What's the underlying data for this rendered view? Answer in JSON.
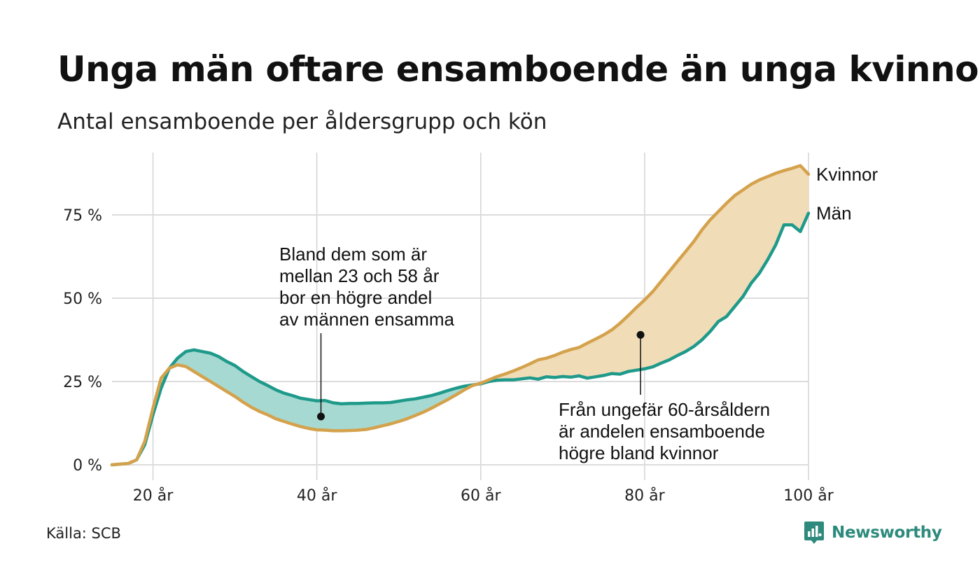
{
  "header": {
    "title": "Unga män oftare ensamboende än unga kvinnor",
    "subtitle": "Antal ensamboende per åldersgrupp och kön"
  },
  "footer": {
    "source": "Källa: SCB",
    "brand": "Newsworthy",
    "brand_color": "#2d8a7c"
  },
  "chart_data": {
    "type": "line",
    "x_unit_label": "år",
    "xlim": [
      15,
      100
    ],
    "ylim": [
      0,
      93
    ],
    "x_ticks": [
      20,
      40,
      60,
      80,
      100
    ],
    "x_tick_labels": [
      "20 år",
      "40 år",
      "60 år",
      "80 år",
      "100 år"
    ],
    "y_ticks": [
      0,
      25,
      50,
      75
    ],
    "y_tick_labels": [
      "0 %",
      "25 %",
      "50 %",
      "75 %"
    ],
    "grid": true,
    "colors": {
      "Kvinnor": "#d4a24c",
      "Män": "#1f9a8a",
      "fill_men_higher": "#a6d9d2",
      "fill_women_higher": "#f1dcb8"
    },
    "series": [
      {
        "name": "Kvinnor",
        "x": [
          15,
          16,
          17,
          18,
          19,
          20,
          21,
          22,
          23,
          24,
          25,
          26,
          27,
          28,
          29,
          30,
          31,
          32,
          33,
          34,
          35,
          36,
          37,
          38,
          39,
          40,
          41,
          42,
          43,
          44,
          45,
          46,
          47,
          48,
          49,
          50,
          51,
          52,
          53,
          54,
          55,
          56,
          57,
          58,
          59,
          60,
          61,
          62,
          63,
          64,
          65,
          66,
          67,
          68,
          69,
          70,
          71,
          72,
          73,
          74,
          75,
          76,
          77,
          78,
          79,
          80,
          81,
          82,
          83,
          84,
          85,
          86,
          87,
          88,
          89,
          90,
          91,
          92,
          93,
          94,
          95,
          96,
          97,
          98,
          99,
          100
        ],
        "values": [
          0,
          0.2,
          0.4,
          1.5,
          7,
          17,
          26,
          29,
          30,
          29.5,
          28,
          26.5,
          25,
          23.5,
          22,
          20.5,
          18.8,
          17.3,
          16,
          15,
          13.8,
          13,
          12.2,
          11.5,
          10.9,
          10.5,
          10.4,
          10.2,
          10.2,
          10.3,
          10.4,
          10.6,
          11.1,
          11.7,
          12.3,
          13,
          13.8,
          14.8,
          15.8,
          17,
          18.3,
          19.6,
          21,
          22.5,
          23.8,
          24.5,
          25.5,
          26.5,
          27.3,
          28.2,
          29.2,
          30.3,
          31.5,
          32,
          32.8,
          33.8,
          34.6,
          35.2,
          36.5,
          37.7,
          39,
          40.5,
          42.5,
          44.8,
          47.2,
          49.5,
          52,
          55,
          58,
          61,
          64,
          67,
          70.5,
          73.5,
          76,
          78.5,
          80.8,
          82.5,
          84.2,
          85.5,
          86.5,
          87.5,
          88.3,
          89,
          89.8,
          87.2
        ]
      },
      {
        "name": "Män",
        "x": [
          15,
          16,
          17,
          18,
          19,
          20,
          21,
          22,
          23,
          24,
          25,
          26,
          27,
          28,
          29,
          30,
          31,
          32,
          33,
          34,
          35,
          36,
          37,
          38,
          39,
          40,
          41,
          42,
          43,
          44,
          45,
          46,
          47,
          48,
          49,
          50,
          51,
          52,
          53,
          54,
          55,
          56,
          57,
          58,
          59,
          60,
          61,
          62,
          63,
          64,
          65,
          66,
          67,
          68,
          69,
          70,
          71,
          72,
          73,
          74,
          75,
          76,
          77,
          78,
          79,
          80,
          81,
          82,
          83,
          84,
          85,
          86,
          87,
          88,
          89,
          90,
          91,
          92,
          93,
          94,
          95,
          96,
          97,
          98,
          99,
          100
        ],
        "values": [
          0,
          0.2,
          0.4,
          1.5,
          6,
          15,
          23,
          29,
          32,
          34,
          34.5,
          34,
          33.5,
          32.5,
          31,
          29.8,
          28,
          26.5,
          25,
          23.8,
          22.5,
          21.5,
          20.8,
          20,
          19.6,
          19.2,
          19.3,
          18.6,
          18.3,
          18.4,
          18.4,
          18.5,
          18.6,
          18.6,
          18.7,
          19.1,
          19.5,
          19.8,
          20.3,
          20.8,
          21.5,
          22.3,
          23,
          23.6,
          24,
          24.3,
          25,
          25.4,
          25.5,
          25.5,
          25.8,
          26.1,
          25.7,
          26.4,
          26.2,
          26.5,
          26.3,
          26.7,
          26,
          26.4,
          26.8,
          27.4,
          27.2,
          28,
          28.4,
          28.8,
          29.4,
          30.5,
          31.5,
          32.8,
          34,
          35.5,
          37.5,
          40,
          43,
          44.5,
          47.5,
          50.5,
          54.5,
          57.5,
          61.5,
          66,
          72,
          72,
          70,
          75.5
        ]
      }
    ],
    "annotations": [
      {
        "lines": [
          "Bland dem som är",
          "mellan 23 och 58 år",
          "bor en högre andel",
          "av männen ensamma"
        ],
        "point": [
          40.5,
          14.5
        ]
      },
      {
        "lines": [
          "Från ungefär 60-årsåldern",
          "är andelen ensamboende",
          "högre bland kvinnor"
        ],
        "point": [
          79.5,
          39
        ]
      }
    ]
  }
}
